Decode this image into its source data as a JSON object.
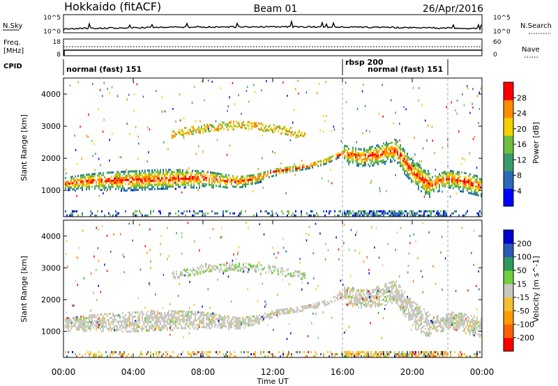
{
  "header": {
    "title_left": "Hokkaido (fitACF)",
    "title_center": "Beam 01",
    "title_right": "26/Apr/2016"
  },
  "status_panels": {
    "nsky_label": "N.Sky",
    "nsky_ticks": [
      "10^5",
      "10^0"
    ],
    "nsearch_label": "N.Search",
    "nsearch_ticks": [
      "10^5",
      "10^0"
    ],
    "freq_label": "Freq.",
    "freq_unit": "[MHz]",
    "freq_ticks": [
      "18",
      "8"
    ],
    "nave_label": "Nave",
    "nave_ticks": [
      "60",
      "0"
    ],
    "cpid_label": "CPID",
    "cpid_segments": [
      {
        "label": "normal (fast) 151",
        "start_hour": 0,
        "end_hour": 16
      },
      {
        "label": "rbsp 200",
        "start_hour": 16,
        "end_hour": 22
      },
      {
        "label": "normal (fast) 151",
        "start_hour": 22,
        "end_hour": 24
      }
    ]
  },
  "chart_data": [
    {
      "type": "heatmap",
      "title": "",
      "ylabel": "Slant Range [km]",
      "xlabel": "",
      "xlim": [
        0,
        24
      ],
      "ylim": [
        180,
        4500
      ],
      "yticks": [
        "1000",
        "2000",
        "3000",
        "4000"
      ],
      "colorbar": {
        "label": "Power [dB]",
        "ticks": [
          "28",
          "24",
          "20",
          "16",
          "12",
          "8",
          "4"
        ],
        "range": [
          0,
          32
        ],
        "colors": [
          "#0000ff",
          "#2a6ab8",
          "#3b9a6a",
          "#6fbf40",
          "#f5d000",
          "#ff8c00",
          "#ff0000"
        ]
      },
      "echo_bands": [
        {
          "name": "main",
          "x": [
            0,
            1,
            2,
            4,
            6,
            8,
            10,
            11,
            12,
            14,
            15,
            16,
            17,
            18,
            19,
            20,
            21,
            22,
            23,
            24
          ],
          "y": [
            1250,
            1300,
            1330,
            1350,
            1400,
            1400,
            1300,
            1400,
            1600,
            1800,
            1950,
            2200,
            2050,
            2150,
            2300,
            1600,
            1200,
            1400,
            1300,
            1150
          ]
        }
      ],
      "vertical_markers_hour": [
        16,
        22
      ]
    },
    {
      "type": "heatmap",
      "title": "",
      "ylabel": "Slant Range [km]",
      "xlabel": "Time UT",
      "xlim": [
        0,
        24
      ],
      "ylim": [
        180,
        4500
      ],
      "yticks": [
        "1000",
        "2000",
        "3000",
        "4000"
      ],
      "xticks": [
        "00:00",
        "04:00",
        "08:00",
        "12:00",
        "16:00",
        "20:00",
        "00:00"
      ],
      "colorbar": {
        "label": "Velocity [m s^-1]",
        "ticks": [
          "200",
          "100",
          "50",
          "15",
          "-15",
          "-50",
          "-100",
          "-200"
        ],
        "range": [
          -250,
          250
        ],
        "colors": [
          "#ff0000",
          "#ff6000",
          "#ff9a00",
          "#f5c030",
          "#c8c8c0",
          "#6fd040",
          "#2f9a5a",
          "#2a5ab8",
          "#0000d0"
        ]
      },
      "echo_bands": [
        {
          "name": "main",
          "x": [
            0,
            1,
            2,
            4,
            6,
            8,
            10,
            11,
            12,
            14,
            15,
            16,
            17,
            18,
            19,
            20,
            21,
            22,
            23,
            24
          ],
          "y": [
            1250,
            1300,
            1330,
            1350,
            1400,
            1400,
            1300,
            1400,
            1600,
            1800,
            1950,
            2200,
            2050,
            2150,
            2300,
            1600,
            1200,
            1400,
            1300,
            1150
          ]
        }
      ],
      "vertical_markers_hour": [
        16,
        22
      ]
    }
  ]
}
